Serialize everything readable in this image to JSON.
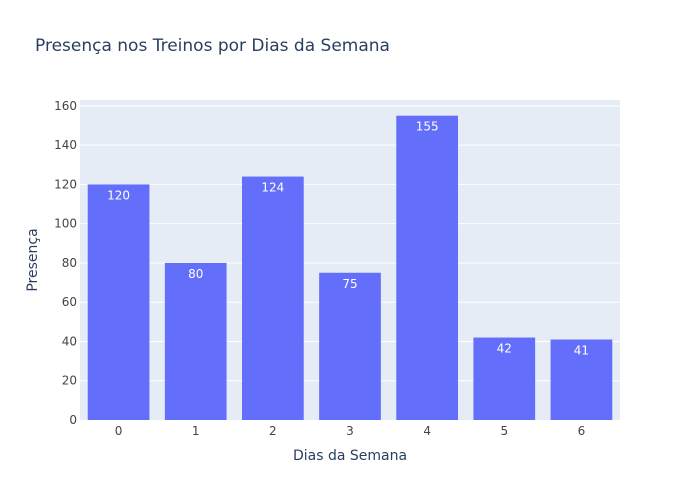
{
  "chart_data": {
    "type": "bar",
    "title": "Presença nos Treinos por Dias da Semana",
    "xlabel": "Dias da Semana",
    "ylabel": "Presença",
    "categories": [
      "0",
      "1",
      "2",
      "3",
      "4",
      "5",
      "6"
    ],
    "values": [
      120,
      80,
      124,
      75,
      155,
      42,
      41
    ],
    "ylim": [
      0,
      163
    ],
    "yticks": [
      0,
      20,
      40,
      60,
      80,
      100,
      120,
      140,
      160
    ],
    "grid": true,
    "legend": "none",
    "colors": {
      "bar": "#636efa",
      "plot_bg": "#e5ecf6",
      "grid": "#ffffff",
      "text": "#2a3f5f",
      "tick_text": "#444444",
      "data_label": "#ffffff"
    }
  }
}
